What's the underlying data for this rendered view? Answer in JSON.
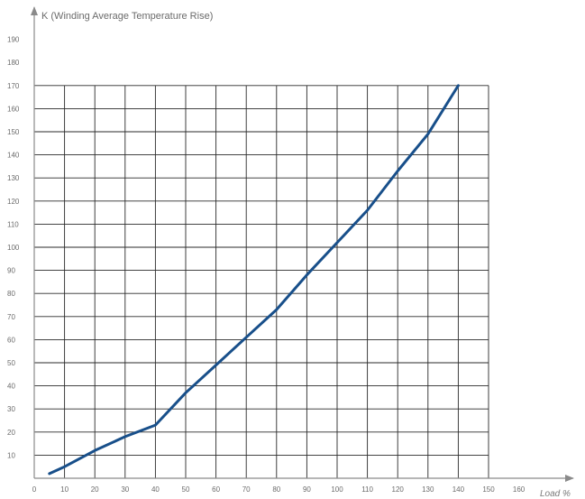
{
  "chart_data": {
    "type": "line",
    "title": "",
    "ylabel": "K (Winding Average Temperature Rise)",
    "xlabel": "Load %",
    "xlim": [
      0,
      180
    ],
    "ylim": [
      0,
      200
    ],
    "x_ticks": [
      0,
      10,
      20,
      30,
      40,
      50,
      60,
      70,
      80,
      90,
      100,
      110,
      120,
      130,
      140,
      150,
      160
    ],
    "y_ticks": [
      10,
      20,
      30,
      40,
      50,
      60,
      70,
      80,
      90,
      100,
      110,
      120,
      130,
      140,
      150,
      160,
      170,
      180,
      190
    ],
    "grid": true,
    "grid_x_range": [
      10,
      150
    ],
    "grid_y_range": [
      0,
      170
    ],
    "series": [
      {
        "color": "#184f8a",
        "x": [
          5,
          10,
          20,
          30,
          40,
          50,
          60,
          70,
          80,
          90,
          100,
          110,
          120,
          130,
          140
        ],
        "y": [
          2,
          5,
          12,
          18,
          23,
          37,
          49,
          61,
          73,
          88,
          102,
          116,
          133,
          149,
          170
        ]
      }
    ]
  }
}
